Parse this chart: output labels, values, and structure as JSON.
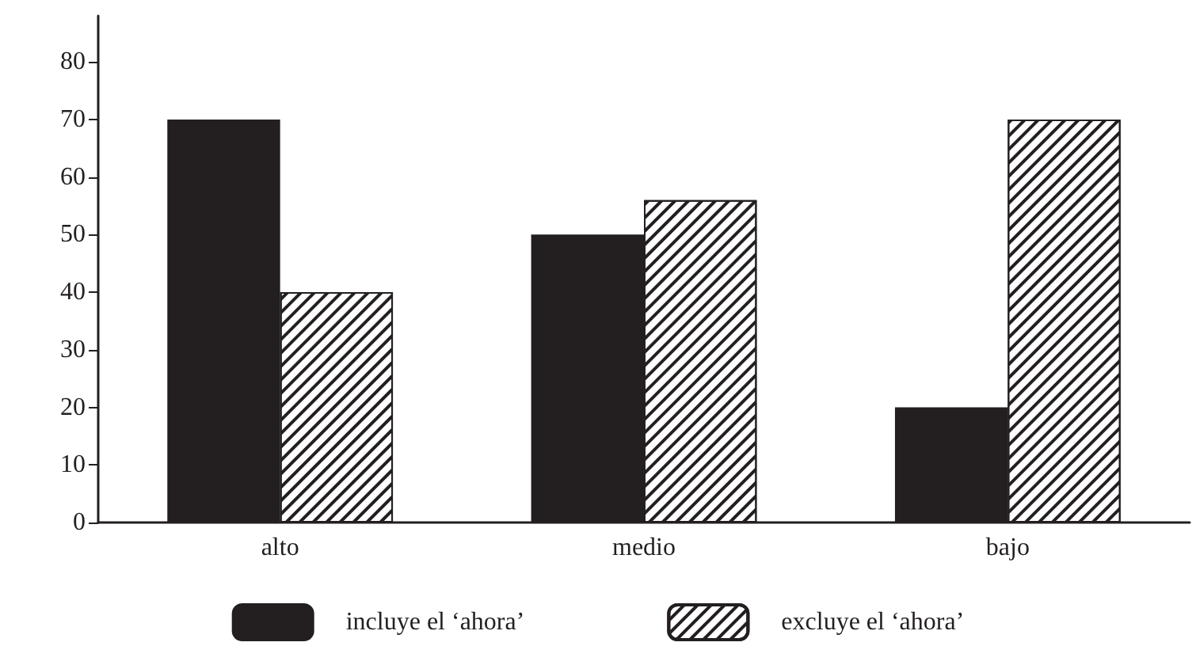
{
  "chart_data": {
    "type": "bar",
    "categories": [
      "alto",
      "medio",
      "bajo"
    ],
    "series": [
      {
        "name": "incluye el ‘ahora’",
        "color": "#231f20",
        "values": [
          70,
          50,
          20
        ]
      },
      {
        "name": "excluye el ‘ahora’",
        "color": "#ffffff",
        "values": [
          40,
          56,
          70
        ]
      }
    ],
    "ylim": [
      0,
      88
    ],
    "yticks": [
      0,
      10,
      20,
      30,
      40,
      50,
      60,
      70,
      80
    ],
    "grid": false,
    "legend": "bottom"
  }
}
